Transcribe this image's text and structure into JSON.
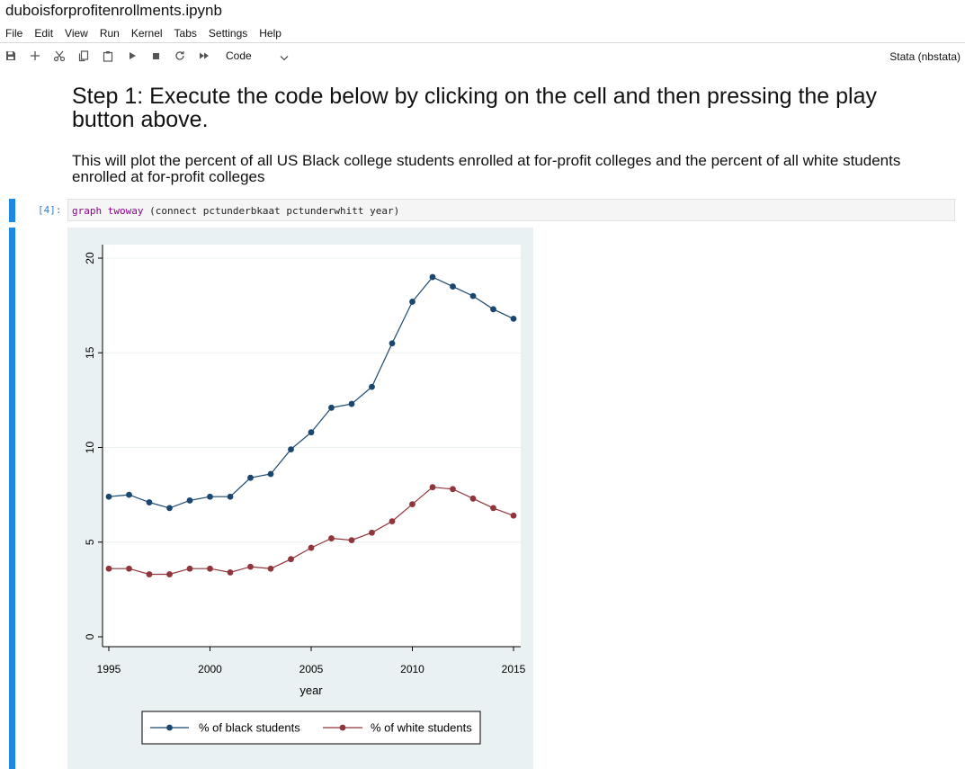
{
  "window": {
    "title": "duboisforprofitenrollments.ipynb"
  },
  "menu": [
    "File",
    "Edit",
    "View",
    "Run",
    "Kernel",
    "Tabs",
    "Settings",
    "Help"
  ],
  "toolbar": {
    "icons": [
      "save-icon",
      "add-cell-icon",
      "cut-icon",
      "copy-icon",
      "paste-icon",
      "run-icon",
      "stop-icon",
      "restart-icon",
      "fast-forward-icon"
    ],
    "cell_type": "Code",
    "kernel": "Stata (nbstata)"
  },
  "markdown": {
    "heading": "Step 1: Execute the code below by clicking on the cell and then pressing the play button above.",
    "paragraph": "This will plot the percent of all US Black college students enrolled at for-profit colleges and the percent of all white students enrolled at for-profit colleges"
  },
  "cell": {
    "prompt": "[4]:",
    "code_keyword": "graph twoway",
    "code_rest": " (connect pctunderbkaat pctunderwhitt year)"
  },
  "colors": {
    "accent": "#1e88e5",
    "plot_background": "#e9f1f2",
    "black_series": "#1a476f",
    "white_series": "#90353b"
  },
  "chart_data": {
    "type": "line",
    "xlabel": "year",
    "ylabel": "",
    "xlim": [
      1995,
      2015
    ],
    "ylim": [
      0,
      20
    ],
    "xticks": [
      1995,
      2000,
      2005,
      2010,
      2015
    ],
    "yticks": [
      0,
      5,
      10,
      15,
      20
    ],
    "grid": true,
    "legend_position": "bottom",
    "x": [
      1995,
      1996,
      1997,
      1998,
      1999,
      2000,
      2001,
      2002,
      2003,
      2004,
      2005,
      2006,
      2007,
      2008,
      2009,
      2010,
      2011,
      2012,
      2013,
      2014,
      2015
    ],
    "series": [
      {
        "name": "% of black students",
        "color": "#1a476f",
        "values": [
          7.4,
          7.5,
          7.1,
          6.8,
          7.2,
          7.4,
          7.4,
          8.4,
          8.6,
          9.9,
          10.8,
          12.1,
          12.3,
          13.2,
          15.5,
          17.7,
          19.0,
          18.5,
          18.0,
          17.3,
          16.8
        ]
      },
      {
        "name": "% of white students",
        "color": "#90353b",
        "values": [
          3.6,
          3.6,
          3.3,
          3.3,
          3.6,
          3.6,
          3.4,
          3.7,
          3.6,
          4.1,
          4.7,
          5.2,
          5.1,
          5.5,
          6.1,
          7.0,
          7.9,
          7.8,
          7.3,
          6.8,
          6.4
        ]
      }
    ]
  }
}
